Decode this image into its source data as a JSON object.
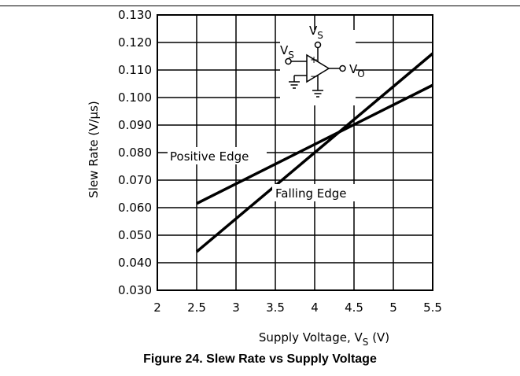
{
  "caption": "Figure 24. Slew Rate vs Supply Voltage",
  "chart_data": {
    "type": "line",
    "title": "",
    "xlabel": "Supply Voltage, V",
    "xlabel_sub": "S",
    "xlabel_unit": " (V)",
    "ylabel": "Slew Rate (V/μs)",
    "xlim": [
      2,
      5.5
    ],
    "ylim": [
      0.03,
      0.13
    ],
    "xticks": [
      2,
      2.5,
      3,
      3.5,
      4,
      4.5,
      5,
      5.5
    ],
    "xtick_labels": [
      "2",
      "2.5",
      "3",
      "3.5",
      "4",
      "4.5",
      "5",
      "5.5"
    ],
    "yticks": [
      0.03,
      0.04,
      0.05,
      0.06,
      0.07,
      0.08,
      0.09,
      0.1,
      0.11,
      0.12,
      0.13
    ],
    "ytick_labels": [
      "0.030",
      "0.040",
      "0.050",
      "0.060",
      "0.070",
      "0.080",
      "0.090",
      "0.100",
      "0.110",
      "0.120",
      "0.130"
    ],
    "grid": true,
    "series": [
      {
        "name": "Positive Edge",
        "x": [
          2.5,
          5.5
        ],
        "y": [
          0.0615,
          0.1045
        ]
      },
      {
        "name": "Falling Edge",
        "x": [
          2.5,
          5.5
        ],
        "y": [
          0.044,
          0.116
        ]
      }
    ],
    "inset": {
      "vs_top": "V",
      "vs_top_sub": "S",
      "vs_left": "V",
      "vs_left_sub": "S",
      "vo": "V",
      "vo_sub": "O",
      "plus": "+",
      "minus": "−"
    }
  }
}
